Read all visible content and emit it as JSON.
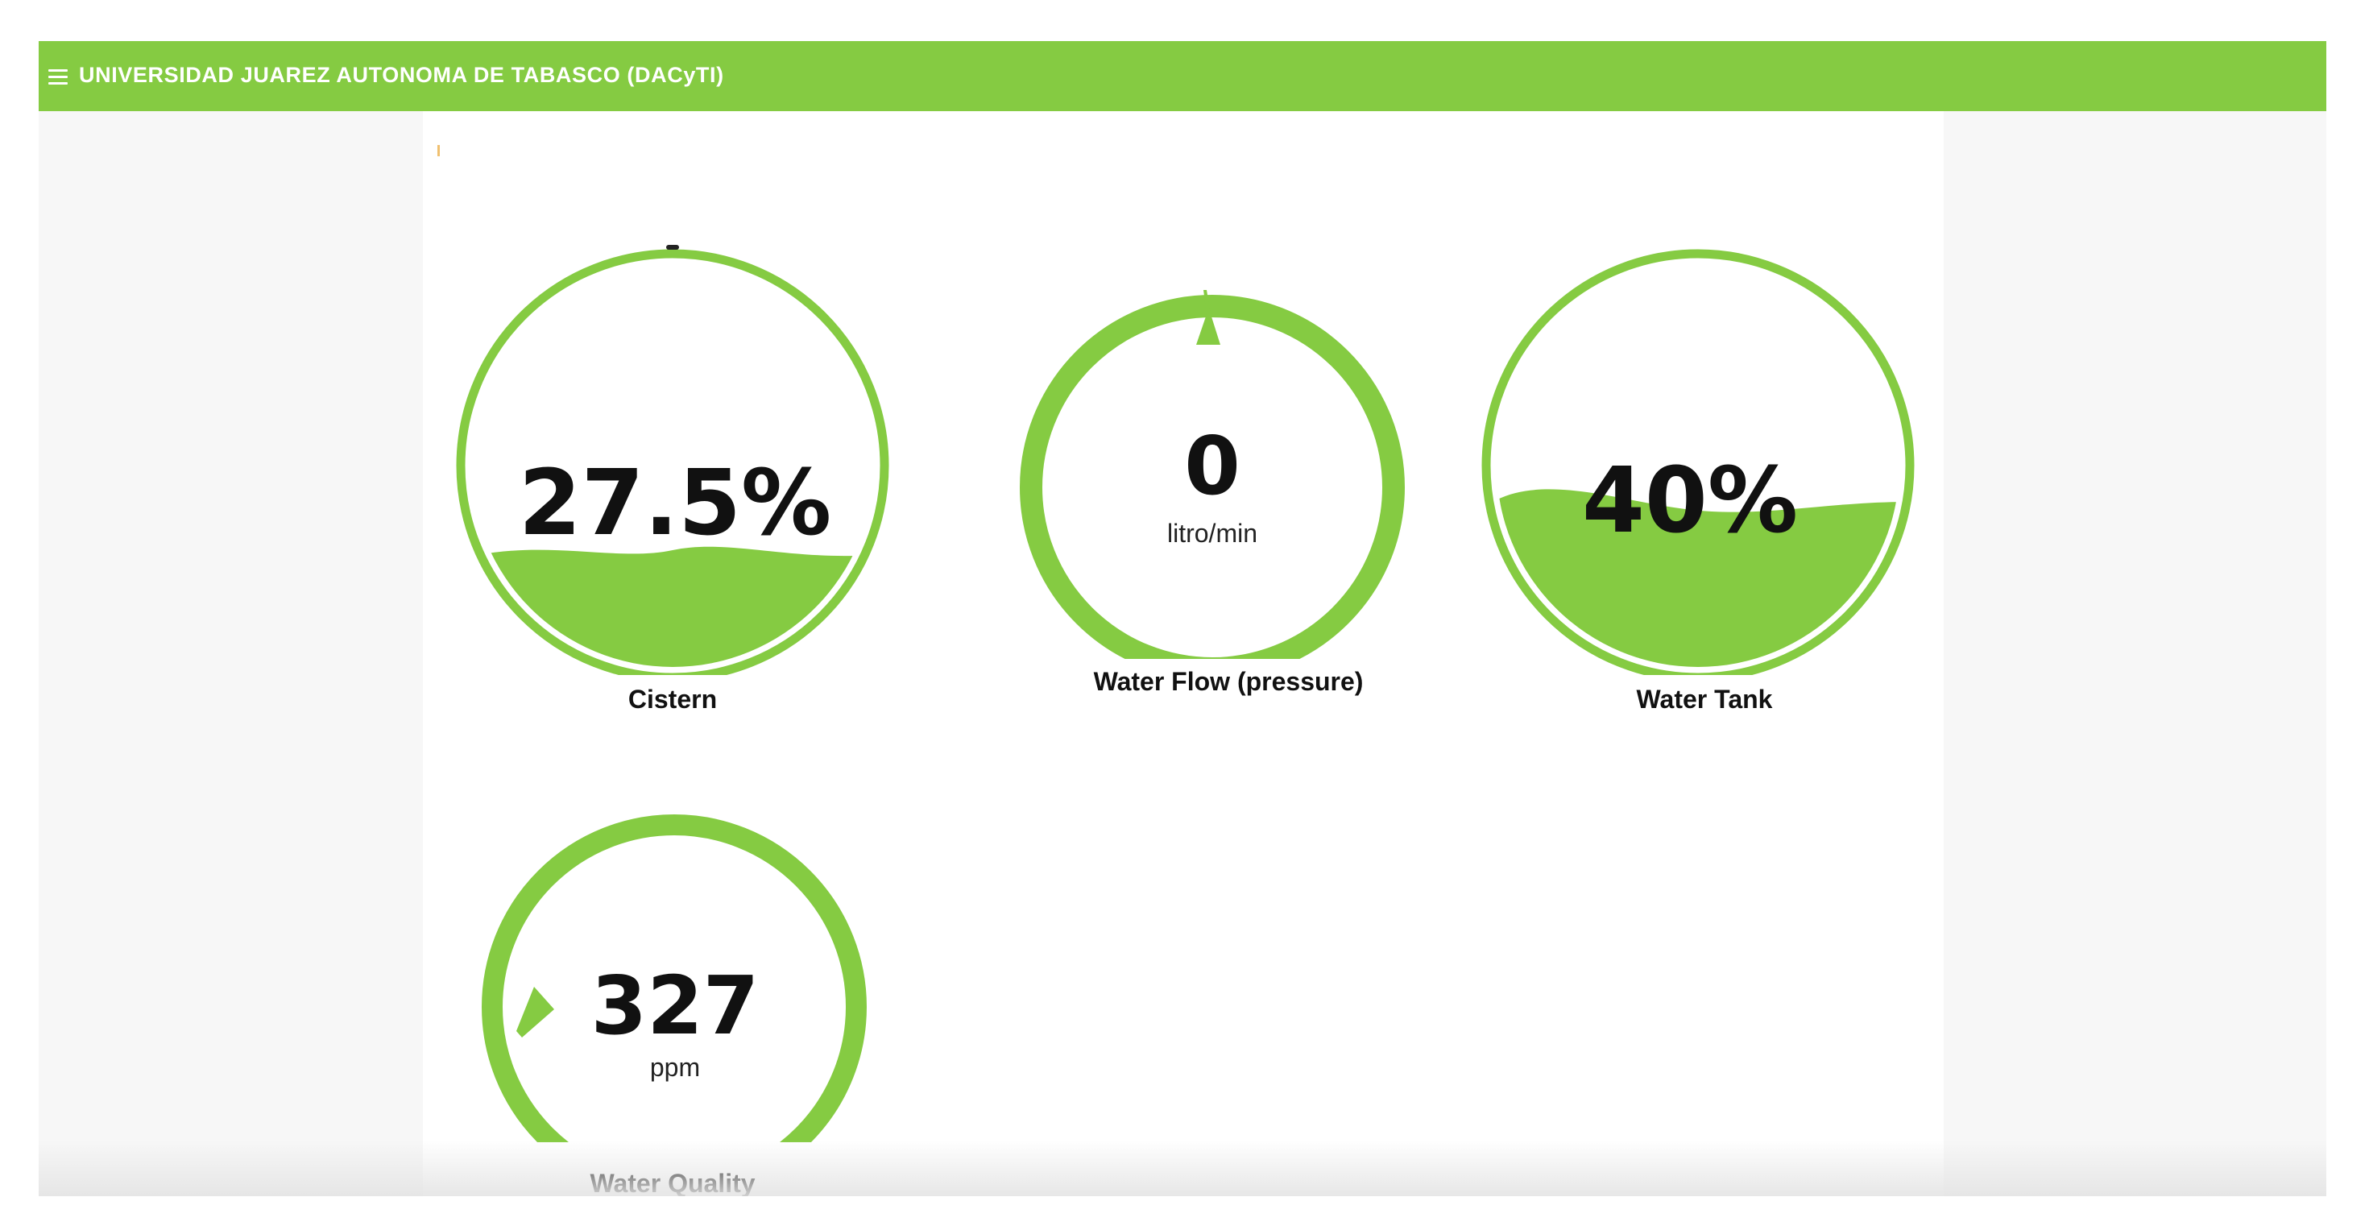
{
  "app": {
    "title": "UNIVERSIDAD JUAREZ AUTONOMA DE TABASCO (DACyTI)",
    "accent": "#85cb42"
  },
  "gauges": [
    {
      "id": "cistern",
      "type": "liquid-fill",
      "value_text": "27.5%",
      "fill_level": 0.275,
      "label": "Cistern"
    },
    {
      "id": "water-flow",
      "type": "ring-dial",
      "value_text": "0",
      "unit": "litro/min",
      "label": "Water Flow (pressure)"
    },
    {
      "id": "water-tank",
      "type": "liquid-fill",
      "value_text": "40%",
      "fill_level": 0.4,
      "label": "Water Tank"
    },
    {
      "id": "water-quality",
      "type": "ring-dial",
      "value_text": "327",
      "unit": "ppm",
      "label": "Water Quality"
    }
  ]
}
